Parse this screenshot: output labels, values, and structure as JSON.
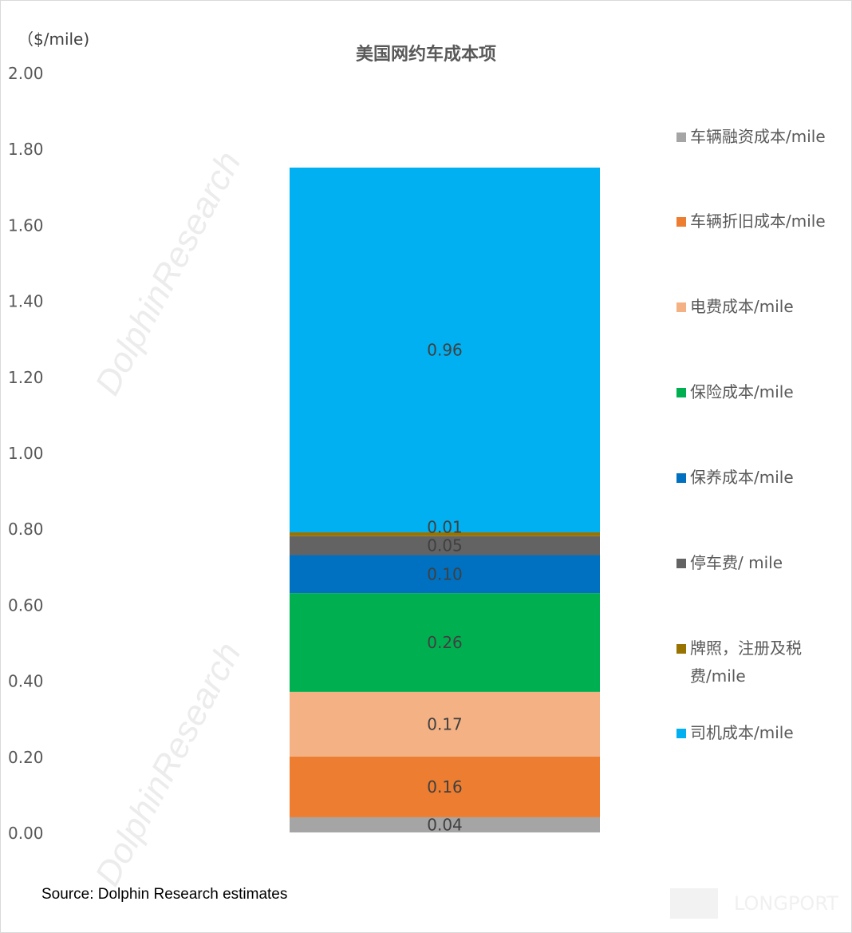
{
  "chart_data": {
    "type": "bar",
    "stacked": true,
    "title": "美国网约车成本项",
    "ylabel": "（$/mile)",
    "xlabel": "",
    "ylim": [
      0,
      2.0
    ],
    "yticks": [
      "0.00",
      "0.20",
      "0.40",
      "0.60",
      "0.80",
      "1.00",
      "1.20",
      "1.40",
      "1.60",
      "1.80",
      "2.00"
    ],
    "grid": false,
    "legend_position": "right",
    "categories": [
      ""
    ],
    "series": [
      {
        "name": "车辆融资成本/mile",
        "values": [
          0.04
        ],
        "label": "0.04",
        "color": "#a5a5a5"
      },
      {
        "name": "车辆折旧成本/mile",
        "values": [
          0.16
        ],
        "label": "0.16",
        "color": "#ed7d31"
      },
      {
        "name": "电费成本/mile",
        "values": [
          0.17
        ],
        "label": "0.17",
        "color": "#f4b183"
      },
      {
        "name": "保险成本/mile",
        "values": [
          0.26
        ],
        "label": "0.26",
        "color": "#00b050"
      },
      {
        "name": "保养成本/mile",
        "values": [
          0.1
        ],
        "label": "0.10",
        "color": "#0070c0"
      },
      {
        "name": "停车费/ mile",
        "values": [
          0.05
        ],
        "label": "0.05",
        "color": "#636363"
      },
      {
        "name": "牌照，注册及税费/mile",
        "values": [
          0.01
        ],
        "label": "0.01",
        "color": "#997300"
      },
      {
        "name": "司机成本/mile",
        "values": [
          0.96
        ],
        "label": "0.96",
        "color": "#00b0f0"
      }
    ]
  },
  "source": "Source: Dolphin Research estimates",
  "watermark": "DolphinResearch",
  "logo": "LONGPORT"
}
